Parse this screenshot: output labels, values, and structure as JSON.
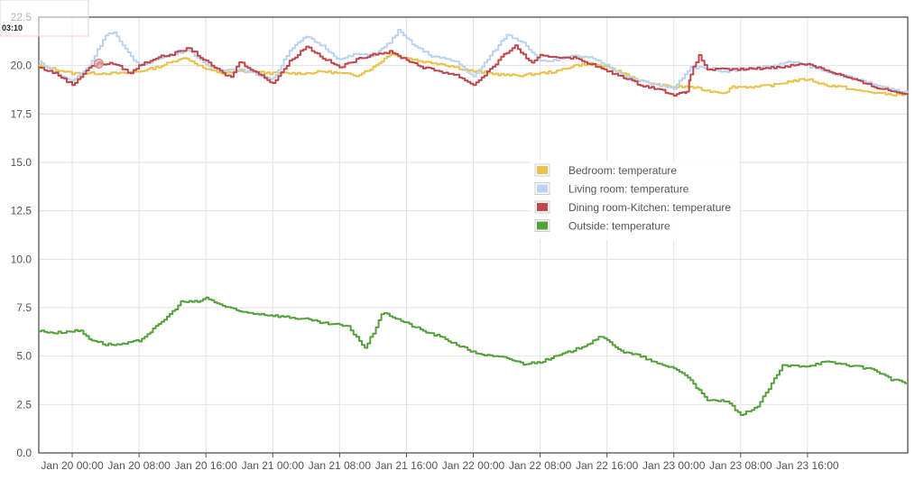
{
  "chart_data": {
    "type": "line",
    "ylim": [
      0,
      22.5
    ],
    "yticks": [
      "0.0",
      "2.5",
      "5.0",
      "7.5",
      "10.0",
      "12.5",
      "15.0",
      "17.5",
      "20.0",
      "22.5"
    ],
    "xlim": [
      "Jan 19 20:00",
      "Jan 24 04:00"
    ],
    "x_ticks": [
      "Jan 20 00:00",
      "Jan 20 08:00",
      "Jan 20 16:00",
      "Jan 21 00:00",
      "Jan 21 08:00",
      "Jan 21 16:00",
      "Jan 22 00:00",
      "Jan 22 08:00",
      "Jan 22 16:00",
      "Jan 23 00:00",
      "Jan 23 08:00",
      "Jan 23 16:00"
    ],
    "grid": true,
    "legend_position": "center-right",
    "hover_time": "03:10",
    "series": [
      {
        "name": "Bedroom: temperature",
        "color": "#e8c249",
        "points": [
          [
            "Jan 19 20:00",
            20.0
          ],
          [
            "Jan 19 22:00",
            19.8
          ],
          [
            "Jan 20 00:00",
            19.6
          ],
          [
            "Jan 20 04:00",
            19.6
          ],
          [
            "Jan 20 06:00",
            19.6
          ],
          [
            "Jan 20 08:00",
            19.7
          ],
          [
            "Jan 20 10:00",
            19.9
          ],
          [
            "Jan 20 12:00",
            20.2
          ],
          [
            "Jan 20 13:00",
            20.4
          ],
          [
            "Jan 20 14:00",
            20.3
          ],
          [
            "Jan 20 16:00",
            19.8
          ],
          [
            "Jan 20 18:00",
            19.6
          ],
          [
            "Jan 20 20:00",
            19.7
          ],
          [
            "Jan 21 00:00",
            19.6
          ],
          [
            "Jan 21 04:00",
            19.6
          ],
          [
            "Jan 21 06:00",
            19.7
          ],
          [
            "Jan 21 08:00",
            19.6
          ],
          [
            "Jan 21 10:00",
            19.5
          ],
          [
            "Jan 21 12:00",
            19.9
          ],
          [
            "Jan 21 14:00",
            20.6
          ],
          [
            "Jan 21 16:00",
            20.4
          ],
          [
            "Jan 21 18:00",
            20.2
          ],
          [
            "Jan 21 20:00",
            20.1
          ],
          [
            "Jan 22 00:00",
            19.7
          ],
          [
            "Jan 22 04:00",
            19.5
          ],
          [
            "Jan 22 06:00",
            19.5
          ],
          [
            "Jan 22 08:00",
            19.6
          ],
          [
            "Jan 22 10:00",
            19.7
          ],
          [
            "Jan 22 12:00",
            20.0
          ],
          [
            "Jan 22 14:00",
            20.1
          ],
          [
            "Jan 22 16:00",
            19.9
          ],
          [
            "Jan 22 18:00",
            19.6
          ],
          [
            "Jan 22 20:00",
            19.2
          ],
          [
            "Jan 22 22:00",
            19.0
          ],
          [
            "Jan 23 00:00",
            18.9
          ],
          [
            "Jan 23 02:00",
            18.9
          ],
          [
            "Jan 23 04:00",
            18.7
          ],
          [
            "Jan 23 06:00",
            18.6
          ],
          [
            "Jan 23 07:00",
            18.9
          ],
          [
            "Jan 23 10:00",
            18.9
          ],
          [
            "Jan 23 12:00",
            19.0
          ],
          [
            "Jan 23 14:00",
            19.2
          ],
          [
            "Jan 23 16:00",
            19.3
          ],
          [
            "Jan 23 18:00",
            19.0
          ],
          [
            "Jan 23 20:00",
            18.9
          ],
          [
            "Jan 23 22:00",
            18.7
          ],
          [
            "Jan 24 00:00",
            18.6
          ],
          [
            "Jan 24 02:00",
            18.5
          ],
          [
            "Jan 24 04:00",
            18.5
          ]
        ]
      },
      {
        "name": "Living room: temperature",
        "color": "#b9d3f0",
        "points": [
          [
            "Jan 19 20:00",
            20.2
          ],
          [
            "Jan 19 22:00",
            19.6
          ],
          [
            "Jan 20 00:00",
            19.2
          ],
          [
            "Jan 20 02:00",
            20.0
          ],
          [
            "Jan 20 04:00",
            21.6
          ],
          [
            "Jan 20 05:00",
            21.7
          ],
          [
            "Jan 20 06:00",
            21.0
          ],
          [
            "Jan 20 08:00",
            20.0
          ],
          [
            "Jan 20 10:00",
            20.3
          ],
          [
            "Jan 20 12:00",
            20.6
          ],
          [
            "Jan 20 14:00",
            20.8
          ],
          [
            "Jan 20 16:00",
            20.0
          ],
          [
            "Jan 20 18:00",
            19.8
          ],
          [
            "Jan 20 20:00",
            19.8
          ],
          [
            "Jan 21 00:00",
            19.3
          ],
          [
            "Jan 21 02:00",
            20.8
          ],
          [
            "Jan 21 04:00",
            21.5
          ],
          [
            "Jan 21 06:00",
            21.0
          ],
          [
            "Jan 21 08:00",
            20.3
          ],
          [
            "Jan 21 10:00",
            20.6
          ],
          [
            "Jan 21 12:00",
            20.5
          ],
          [
            "Jan 21 14:00",
            21.2
          ],
          [
            "Jan 21 15:00",
            21.8
          ],
          [
            "Jan 21 17:00",
            21.0
          ],
          [
            "Jan 21 19:00",
            20.5
          ],
          [
            "Jan 21 22:00",
            20.2
          ],
          [
            "Jan 22 00:00",
            19.4
          ],
          [
            "Jan 22 02:00",
            20.5
          ],
          [
            "Jan 22 04:00",
            21.6
          ],
          [
            "Jan 22 06:00",
            21.2
          ],
          [
            "Jan 22 08:00",
            20.2
          ],
          [
            "Jan 22 10:00",
            20.3
          ],
          [
            "Jan 22 12:00",
            20.5
          ],
          [
            "Jan 22 14:00",
            20.4
          ],
          [
            "Jan 22 16:00",
            20.0
          ],
          [
            "Jan 22 18:00",
            19.5
          ],
          [
            "Jan 22 20:00",
            19.2
          ],
          [
            "Jan 22 22:00",
            19.0
          ],
          [
            "Jan 23 00:00",
            18.8
          ],
          [
            "Jan 23 01:00",
            19.4
          ],
          [
            "Jan 23 02:00",
            19.9
          ],
          [
            "Jan 23 04:00",
            19.9
          ],
          [
            "Jan 23 06:00",
            19.7
          ],
          [
            "Jan 23 08:00",
            19.8
          ],
          [
            "Jan 23 10:00",
            19.9
          ],
          [
            "Jan 23 12:00",
            20.0
          ],
          [
            "Jan 23 14:00",
            20.2
          ],
          [
            "Jan 23 16:00",
            20.0
          ],
          [
            "Jan 23 18:00",
            19.7
          ],
          [
            "Jan 23 20:00",
            19.5
          ],
          [
            "Jan 23 22:00",
            19.3
          ],
          [
            "Jan 24 00:00",
            19.0
          ],
          [
            "Jan 24 02:00",
            18.8
          ],
          [
            "Jan 24 04:00",
            18.6
          ]
        ]
      },
      {
        "name": "Dining room-Kitchen: temperature",
        "color": "#c0464c",
        "points": [
          [
            "Jan 19 20:00",
            19.9
          ],
          [
            "Jan 19 22:00",
            19.6
          ],
          [
            "Jan 20 00:00",
            19.0
          ],
          [
            "Jan 20 02:00",
            19.9
          ],
          [
            "Jan 20 03:10",
            20.1
          ],
          [
            "Jan 20 05:00",
            20.1
          ],
          [
            "Jan 20 07:00",
            19.6
          ],
          [
            "Jan 20 08:00",
            20.0
          ],
          [
            "Jan 20 10:00",
            20.4
          ],
          [
            "Jan 20 12:00",
            20.6
          ],
          [
            "Jan 20 14:00",
            20.9
          ],
          [
            "Jan 20 16:00",
            20.2
          ],
          [
            "Jan 20 18:00",
            19.6
          ],
          [
            "Jan 20 19:00",
            19.4
          ],
          [
            "Jan 20 20:00",
            20.2
          ],
          [
            "Jan 21 00:00",
            19.1
          ],
          [
            "Jan 21 02:00",
            20.2
          ],
          [
            "Jan 21 04:00",
            21.0
          ],
          [
            "Jan 21 06:00",
            20.4
          ],
          [
            "Jan 21 08:00",
            19.9
          ],
          [
            "Jan 21 10:00",
            20.3
          ],
          [
            "Jan 21 12:00",
            20.6
          ],
          [
            "Jan 21 14:00",
            20.7
          ],
          [
            "Jan 21 16:00",
            20.3
          ],
          [
            "Jan 21 18:00",
            19.9
          ],
          [
            "Jan 21 20:00",
            19.7
          ],
          [
            "Jan 21 22:00",
            19.5
          ],
          [
            "Jan 22 00:00",
            19.0
          ],
          [
            "Jan 22 02:00",
            19.8
          ],
          [
            "Jan 22 04:00",
            20.7
          ],
          [
            "Jan 22 05:00",
            21.0
          ],
          [
            "Jan 22 07:00",
            20.1
          ],
          [
            "Jan 22 08:00",
            20.5
          ],
          [
            "Jan 22 12:00",
            20.4
          ],
          [
            "Jan 22 14:00",
            20.1
          ],
          [
            "Jan 22 16:00",
            19.7
          ],
          [
            "Jan 22 18:00",
            19.4
          ],
          [
            "Jan 22 20:00",
            19.0
          ],
          [
            "Jan 22 22:00",
            18.8
          ],
          [
            "Jan 23 00:00",
            18.5
          ],
          [
            "Jan 23 01:30",
            18.6
          ],
          [
            "Jan 23 02:00",
            19.6
          ],
          [
            "Jan 23 03:00",
            20.5
          ],
          [
            "Jan 23 04:00",
            19.8
          ],
          [
            "Jan 23 08:00",
            19.8
          ],
          [
            "Jan 23 12:00",
            19.9
          ],
          [
            "Jan 23 16:00",
            20.1
          ],
          [
            "Jan 23 18:00",
            19.8
          ],
          [
            "Jan 23 20:00",
            19.5
          ],
          [
            "Jan 23 22:00",
            19.2
          ],
          [
            "Jan 24 00:00",
            18.9
          ],
          [
            "Jan 24 02:00",
            18.7
          ],
          [
            "Jan 24 04:00",
            18.5
          ]
        ]
      },
      {
        "name": "Outside: temperature",
        "color": "#54a03b",
        "points": [
          [
            "Jan 19 20:00",
            6.3
          ],
          [
            "Jan 19 22:00",
            6.2
          ],
          [
            "Jan 20 00:00",
            6.3
          ],
          [
            "Jan 20 01:00",
            6.3
          ],
          [
            "Jan 20 02:00",
            5.9
          ],
          [
            "Jan 20 04:00",
            5.6
          ],
          [
            "Jan 20 06:00",
            5.6
          ],
          [
            "Jan 20 08:00",
            5.8
          ],
          [
            "Jan 20 10:00",
            6.5
          ],
          [
            "Jan 20 12:00",
            7.3
          ],
          [
            "Jan 20 13:00",
            7.8
          ],
          [
            "Jan 20 15:00",
            7.8
          ],
          [
            "Jan 20 16:00",
            8.0
          ],
          [
            "Jan 20 18:00",
            7.6
          ],
          [
            "Jan 20 20:00",
            7.3
          ],
          [
            "Jan 21 00:00",
            7.1
          ],
          [
            "Jan 21 04:00",
            6.9
          ],
          [
            "Jan 21 06:00",
            6.7
          ],
          [
            "Jan 21 08:00",
            6.6
          ],
          [
            "Jan 21 09:00",
            6.5
          ],
          [
            "Jan 21 10:00",
            6.0
          ],
          [
            "Jan 21 11:00",
            5.4
          ],
          [
            "Jan 21 12:00",
            6.2
          ],
          [
            "Jan 21 13:00",
            7.2
          ],
          [
            "Jan 21 14:00",
            7.1
          ],
          [
            "Jan 21 16:00",
            6.7
          ],
          [
            "Jan 21 18:00",
            6.3
          ],
          [
            "Jan 21 20:00",
            6.0
          ],
          [
            "Jan 22 00:00",
            5.2
          ],
          [
            "Jan 22 02:00",
            5.0
          ],
          [
            "Jan 22 04:00",
            4.9
          ],
          [
            "Jan 22 06:00",
            4.6
          ],
          [
            "Jan 22 08:00",
            4.7
          ],
          [
            "Jan 22 10:00",
            5.0
          ],
          [
            "Jan 22 12:00",
            5.3
          ],
          [
            "Jan 22 14:00",
            5.7
          ],
          [
            "Jan 22 15:00",
            6.0
          ],
          [
            "Jan 22 16:00",
            5.8
          ],
          [
            "Jan 22 18:00",
            5.2
          ],
          [
            "Jan 22 20:00",
            5.0
          ],
          [
            "Jan 22 22:00",
            4.6
          ],
          [
            "Jan 23 00:00",
            4.4
          ],
          [
            "Jan 23 02:00",
            3.8
          ],
          [
            "Jan 23 03:00",
            3.2
          ],
          [
            "Jan 23 04:00",
            2.7
          ],
          [
            "Jan 23 06:00",
            2.7
          ],
          [
            "Jan 23 07:00",
            2.4
          ],
          [
            "Jan 23 08:00",
            1.9
          ],
          [
            "Jan 23 09:00",
            2.2
          ],
          [
            "Jan 23 10:00",
            2.4
          ],
          [
            "Jan 23 12:00",
            3.8
          ],
          [
            "Jan 23 13:00",
            4.5
          ],
          [
            "Jan 23 16:00",
            4.5
          ],
          [
            "Jan 23 18:00",
            4.7
          ],
          [
            "Jan 23 20:00",
            4.6
          ],
          [
            "Jan 24 00:00",
            4.3
          ],
          [
            "Jan 24 02:00",
            3.8
          ],
          [
            "Jan 24 04:00",
            3.6
          ]
        ]
      }
    ]
  }
}
